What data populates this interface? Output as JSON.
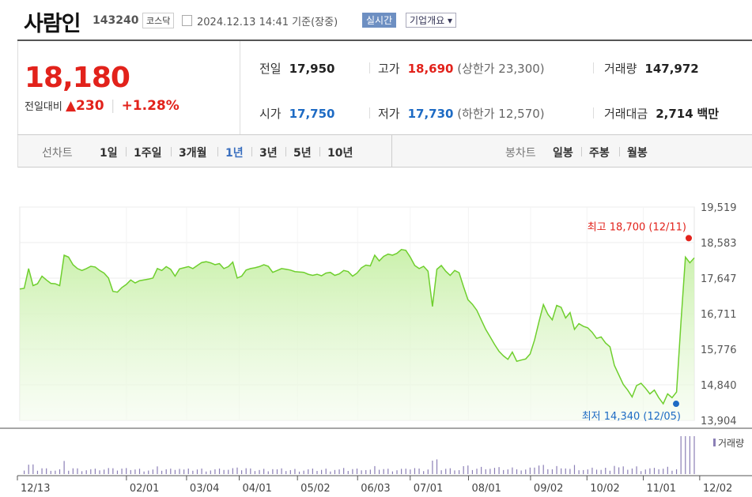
{
  "header": {
    "company": "사람인",
    "code": "143240",
    "market": "코스닥",
    "date_text": "2024.12.13 14:41 기준(장중)",
    "realtime_button": "실시간",
    "company_info_button": "기업개요 ▾"
  },
  "quote": {
    "price": "18,180",
    "change_label": "전일대비",
    "change_value": "▲230",
    "change_percent": "+1.28%",
    "prev_close_label": "전일",
    "prev_close": "17,950",
    "high_label": "고가",
    "high": "18,690",
    "upper_limit": "(상한가 23,300)",
    "volume_label": "거래량",
    "volume": "147,972",
    "open_label": "시가",
    "open": "17,750",
    "low_label": "저가",
    "low": "17,730",
    "lower_limit": "(하한가 12,570)",
    "trade_value_label": "거래대금",
    "trade_value": "2,714",
    "trade_value_unit": "백만"
  },
  "tabs": {
    "line_label": "선차트",
    "periods": [
      "1일",
      "1주일",
      "3개월",
      "1년",
      "3년",
      "5년",
      "10년"
    ],
    "selected": "1년",
    "candle_label": "봉차트",
    "candles": [
      "일봉",
      "주봉",
      "월봉"
    ]
  },
  "colors": {
    "up": "#e2221b",
    "down": "#1e6bc4",
    "line": "#6fcf2e",
    "fill_top": "#c8f0a8"
  },
  "chart_data": {
    "type": "area",
    "x_tick_labels": [
      "12/13",
      "02/01",
      "03/04",
      "04/01",
      "05/02",
      "06/03",
      "07/01",
      "08/01",
      "09/02",
      "10/02",
      "11/01",
      "12/02"
    ],
    "y_ticks": [
      19519,
      18583,
      17647,
      16711,
      15776,
      14840,
      13904
    ],
    "ylim": [
      13904,
      19519
    ],
    "grid": true,
    "volume_label": "거래량",
    "annotations": {
      "high": {
        "label": "최고 18,700 (12/11)",
        "value": 18700,
        "date": "12/11"
      },
      "low": {
        "label": "최저 14,340 (12/05)",
        "value": 14340,
        "date": "12/05"
      }
    },
    "series": [
      {
        "values": [
          17360,
          17380,
          17900,
          17450,
          17500,
          17700,
          17600,
          17510,
          17500,
          17450,
          18250,
          18200,
          18000,
          17900,
          17850,
          17900,
          17960,
          17940,
          17850,
          17780,
          17650,
          17300,
          17280,
          17400,
          17480,
          17600,
          17520,
          17580,
          17600,
          17620,
          17650,
          17900,
          17850,
          17950,
          17880,
          17700,
          17890,
          17920,
          17950,
          17900,
          17980,
          18060,
          18080,
          18050,
          18000,
          18030,
          17900,
          17950,
          18070,
          17650,
          17700,
          17860,
          17900,
          17920,
          17950,
          18000,
          17960,
          17800,
          17850,
          17900,
          17880,
          17860,
          17820,
          17810,
          17800,
          17750,
          17720,
          17750,
          17710,
          17780,
          17800,
          17720,
          17760,
          17850,
          17820,
          17700,
          17780,
          17920,
          17990,
          17970,
          18250,
          18100,
          18220,
          18280,
          18250,
          18300,
          18400,
          18380,
          18200,
          17980,
          17900,
          17960,
          17830,
          16900,
          17880,
          17980,
          17830,
          17720,
          17850,
          17790,
          17420,
          17080,
          16960,
          16800,
          16550,
          16300,
          16100,
          15900,
          15720,
          15600,
          15510,
          15700,
          15460,
          15490,
          15520,
          15650,
          16020,
          16500,
          16950,
          16700,
          16550,
          16930,
          16880,
          16600,
          16740,
          16300,
          16450,
          16380,
          16340,
          16220,
          16060,
          16100,
          15940,
          15840,
          15350,
          15100,
          14850,
          14700,
          14520,
          14820,
          14880,
          14750,
          14600,
          14700,
          14500,
          14340,
          14600,
          14500,
          14650,
          16500,
          18200,
          18050,
          18180
        ]
      }
    ]
  }
}
